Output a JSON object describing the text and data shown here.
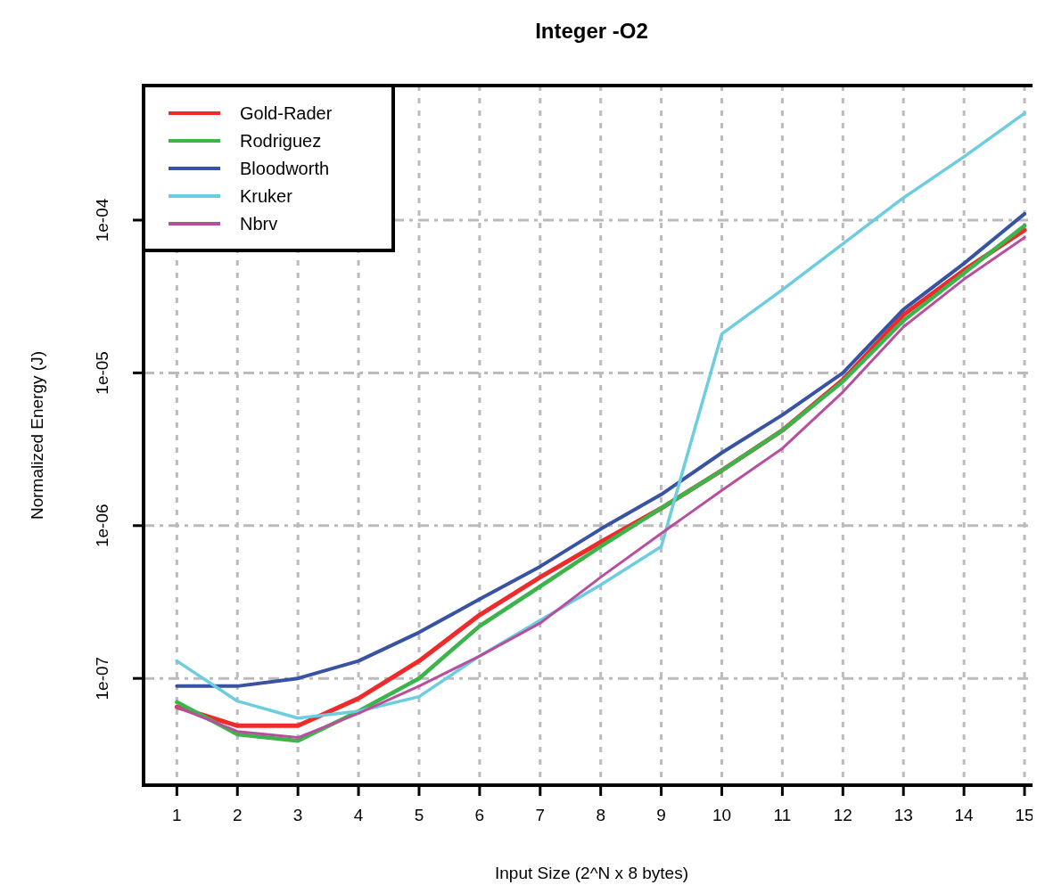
{
  "chart_data": {
    "type": "line",
    "title": "Integer -O2",
    "xlabel": "Input Size (2^N x 8 bytes)",
    "ylabel": "Normalized Energy (J)",
    "x": [
      1,
      2,
      3,
      4,
      5,
      6,
      7,
      8,
      9,
      10,
      11,
      12,
      13,
      14,
      15
    ],
    "xlim": [
      0.45,
      15.25
    ],
    "xticks": [
      1,
      2,
      3,
      4,
      5,
      6,
      7,
      8,
      9,
      10,
      11,
      12,
      13,
      14,
      15
    ],
    "ylim": [
      2e-08,
      0.00076
    ],
    "yticks": [
      {
        "value": 1e-07,
        "label": "1e-07"
      },
      {
        "value": 1e-06,
        "label": "1e-06"
      },
      {
        "value": 1e-05,
        "label": "1e-05"
      },
      {
        "value": 0.0001,
        "label": "1e-04"
      }
    ],
    "log": "y",
    "grid": true,
    "legend": "top left",
    "line_style": "solid",
    "marker": "none",
    "series": [
      {
        "name": "Gold-Rader",
        "color": "#ee2a2a",
        "values": [
          6.5e-08,
          4.9e-08,
          4.9e-08,
          7.4e-08,
          1.3e-07,
          2.6e-07,
          4.6e-07,
          7.8e-07,
          1.3e-06,
          2.3e-06,
          4.2e-06,
          9e-06,
          2.4e-05,
          4.7e-05,
          8.6e-05
        ]
      },
      {
        "name": "Rodriguez",
        "color": "#3cb44b",
        "values": [
          7e-08,
          4.3e-08,
          3.9e-08,
          6.1e-08,
          1e-07,
          2.2e-07,
          4e-07,
          7.3e-07,
          1.3e-06,
          2.3e-06,
          4.2e-06,
          8.8e-06,
          2.2e-05,
          4.5e-05,
          9.2e-05
        ]
      },
      {
        "name": "Bloodworth",
        "color": "#3953a4",
        "values": [
          8.9e-08,
          8.9e-08,
          1e-07,
          1.3e-07,
          2e-07,
          3.3e-07,
          5.4e-07,
          9.5e-07,
          1.6e-06,
          3e-06,
          5.3e-06,
          1e-05,
          2.6e-05,
          5.2e-05,
          0.00011
        ]
      },
      {
        "name": "Kruker",
        "color": "#6ccde0",
        "values": [
          1.3e-07,
          7.1e-08,
          5.5e-08,
          6.1e-08,
          7.6e-08,
          1.4e-07,
          2.4e-07,
          4.1e-07,
          7.3e-07,
          1.8e-05,
          3.5e-05,
          7e-05,
          0.00014,
          0.00026,
          0.0005
        ]
      },
      {
        "name": "Nbrv",
        "color": "#b74f9e",
        "values": [
          6.5e-08,
          4.5e-08,
          4.1e-08,
          5.9e-08,
          8.9e-08,
          1.4e-07,
          2.3e-07,
          4.6e-07,
          8.9e-07,
          1.7e-06,
          3.2e-06,
          7.5e-06,
          2e-05,
          4.1e-05,
          7.7e-05
        ]
      }
    ]
  }
}
